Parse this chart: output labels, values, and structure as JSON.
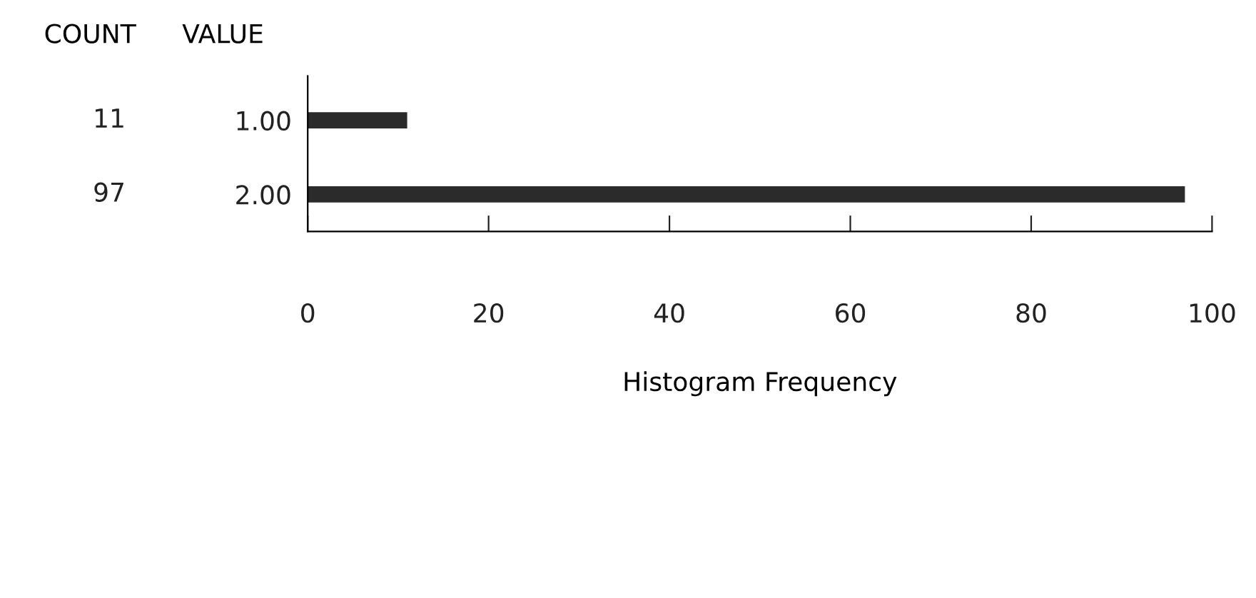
{
  "chart_data": {
    "type": "bar",
    "orientation": "horizontal",
    "ylabel": "VALUE",
    "xlabel": "Histogram Frequency",
    "annotations": [
      "COUNT"
    ],
    "categories": [
      "1.00",
      "2.00"
    ],
    "values": [
      11,
      97
    ],
    "color": "#2b2b2b",
    "data_labels": true,
    "xlim": [
      0,
      100
    ],
    "xticks": [
      0,
      20,
      40,
      60,
      80,
      100
    ],
    "grid": false,
    "legend": false
  }
}
